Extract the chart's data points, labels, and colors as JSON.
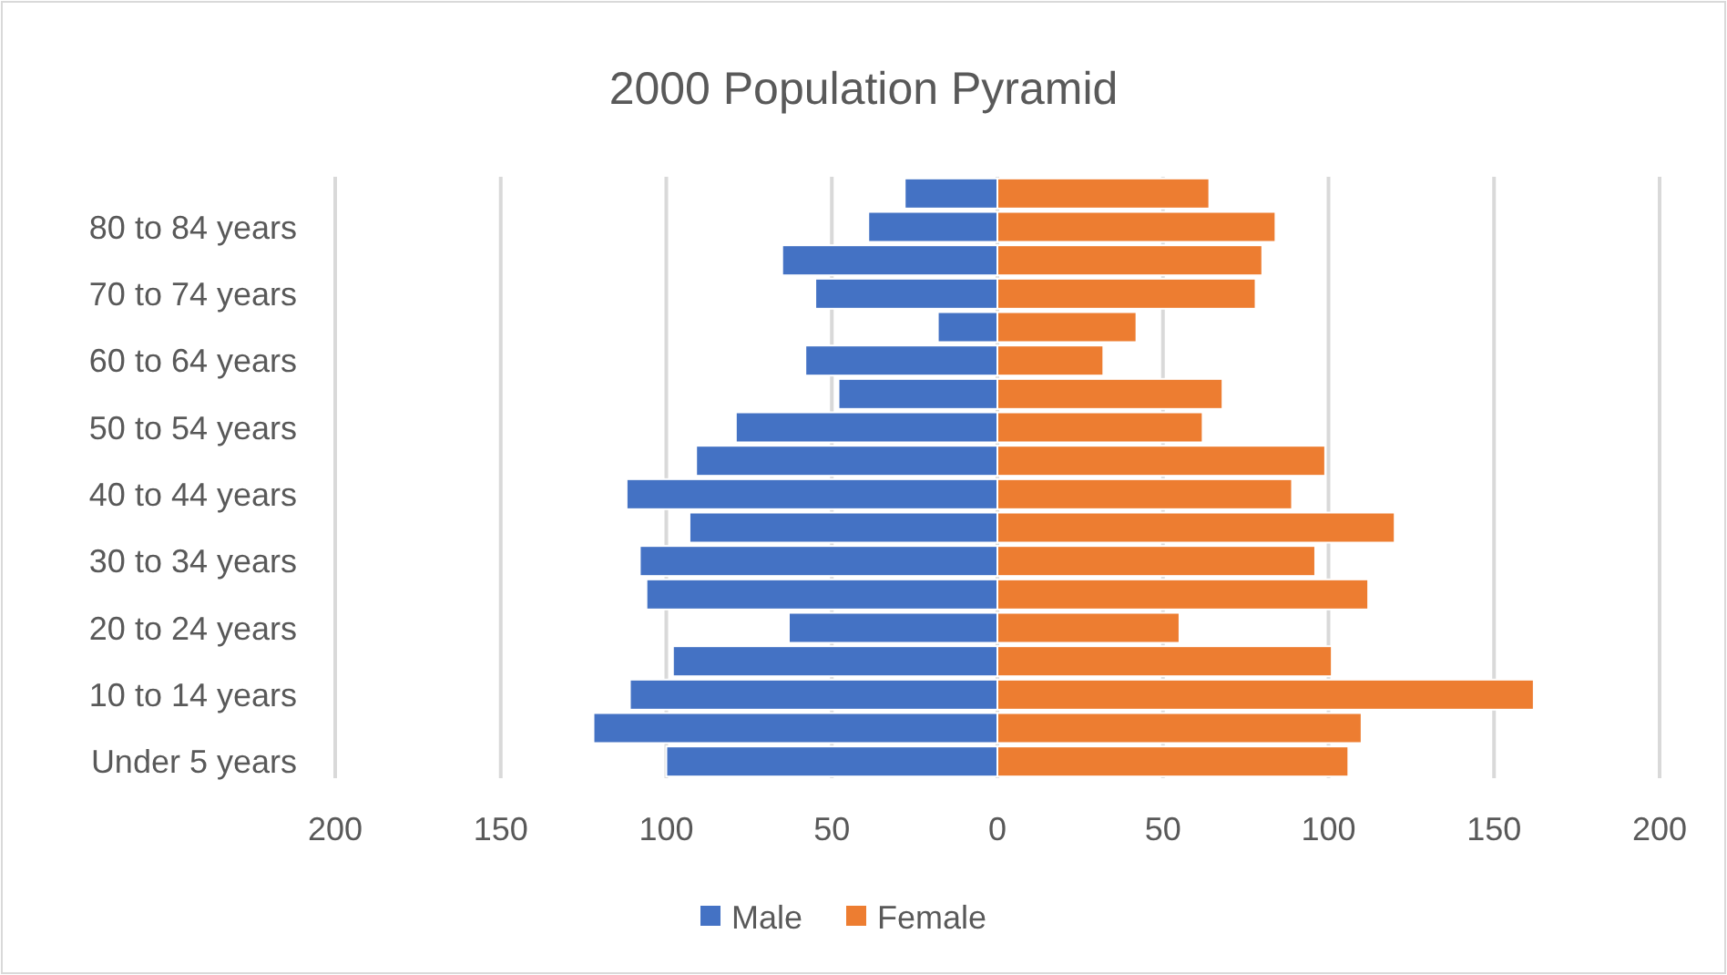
{
  "chart_data": {
    "type": "bar",
    "title": "2000 Population Pyramid",
    "orientation": "horizontal",
    "stacked": true,
    "categories": [
      null,
      "80 to 84 years",
      null,
      "70 to 74 years",
      null,
      "60 to 64 years",
      null,
      "50 to 54 years",
      null,
      "40 to 44 years",
      null,
      "30 to 34 years",
      null,
      "20 to 24 years",
      null,
      "10 to 14 years",
      null,
      "Under 5 years"
    ],
    "series": [
      {
        "name": "Male",
        "color": "#4472c4",
        "values": [
          -28,
          -39,
          -65,
          -55,
          -18,
          -58,
          -48,
          -79,
          -91,
          -112,
          -93,
          -108,
          -106,
          -63,
          -98,
          -111,
          -122,
          -100
        ]
      },
      {
        "name": "Female",
        "color": "#ed7d31",
        "values": [
          64,
          84,
          80,
          78,
          42,
          32,
          68,
          62,
          99,
          89,
          120,
          96,
          112,
          55,
          101,
          162,
          110,
          106
        ]
      }
    ],
    "xlim": [
      -200,
      200
    ],
    "xticks": [
      {
        "value": -200,
        "label": "200"
      },
      {
        "value": -150,
        "label": "150"
      },
      {
        "value": -100,
        "label": "100"
      },
      {
        "value": -50,
        "label": "50"
      },
      0,
      50,
      100,
      150,
      200
    ],
    "grid": "x",
    "legend": "bottom"
  }
}
